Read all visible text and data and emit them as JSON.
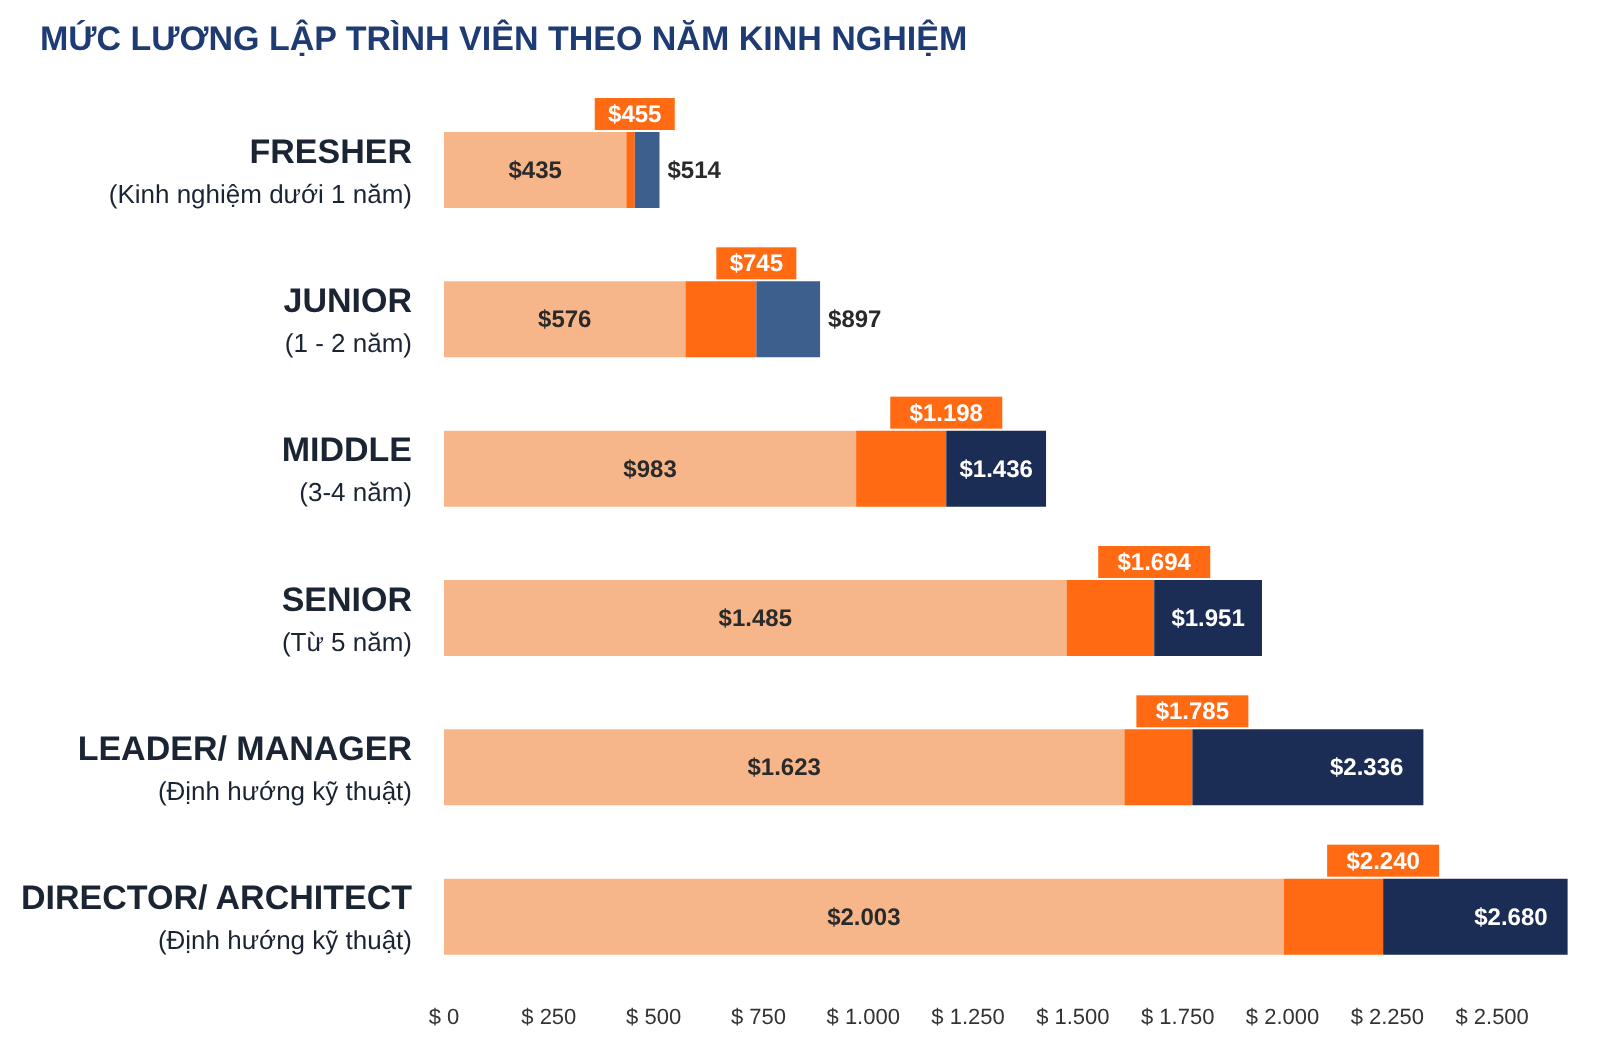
{
  "chart_data": {
    "type": "bar",
    "orientation": "horizontal",
    "stacked": true,
    "title": "MỨC LƯƠNG LẬP TRÌNH VIÊN THEO NĂM KINH NGHIỆM",
    "categories": [
      "FRESHER\n(Kinh nghiệm dưới 1 năm)",
      "JUNIOR\n(1 - 2 năm)",
      "MIDDLE\n(3-4 năm)",
      "SENIOR\n(Từ 5 năm)",
      "LEADER/ MANAGER\n(Định hướng kỹ thuật)",
      "DIRECTOR/ ARCHITECT\n(Định hướng kỹ thuật)"
    ],
    "series": [
      {
        "color": "#f6b68a",
        "values": [
          435,
          576,
          983,
          1485,
          1623,
          2003
        ],
        "value_labels": [
          "$435",
          "$576",
          "$983",
          "$1.485",
          "$1.623",
          "$2.003"
        ]
      },
      {
        "color": "#ff6a13",
        "values": [
          20,
          169,
          215,
          209,
          162,
          237
        ]
      },
      {
        "color": "#1b2d55",
        "colors": [
          "#3d5f8e",
          "#3d5f8e",
          "#1b2d55",
          "#1b2d55",
          "#1b2d55",
          "#1b2d55"
        ],
        "values": [
          59,
          152,
          238,
          257,
          551,
          440
        ]
      }
    ],
    "annotations": [
      {
        "text": "$455",
        "x": 455,
        "y": "FRESHER\n(Kinh nghiệm dưới 1 năm)"
      },
      {
        "text": "$514",
        "x": 514,
        "y": "FRESHER\n(Kinh nghiệm dưới 1 năm)"
      },
      {
        "text": "$745",
        "x": 745,
        "y": "JUNIOR\n(1 - 2 năm)"
      },
      {
        "text": "$897",
        "x": 897,
        "y": "JUNIOR\n(1 - 2 năm)"
      },
      {
        "text": "$1.198",
        "x": 1198,
        "y": "MIDDLE\n(3-4 năm)"
      },
      {
        "text": "$1.436",
        "x": 1436,
        "y": "MIDDLE\n(3-4 năm)"
      },
      {
        "text": "$1.694",
        "x": 1694,
        "y": "SENIOR\n(Từ 5 năm)"
      },
      {
        "text": "$1.951",
        "x": 1951,
        "y": "SENIOR\n(Từ 5 năm)"
      },
      {
        "text": "$1.785",
        "x": 1785,
        "y": "LEADER/ MANAGER\n(Định hướng kỹ thuật)"
      },
      {
        "text": "$2.336",
        "x": 2336,
        "y": "LEADER/ MANAGER\n(Định hướng kỹ thuật)"
      },
      {
        "text": "$2.240",
        "x": 2240,
        "y": "DIRECTOR/ ARCHITECT\n(Định hướng kỹ thuật)"
      },
      {
        "text": "$2.680",
        "x": 2680,
        "y": "DIRECTOR/ ARCHITECT\n(Định hướng kỹ thuật)"
      }
    ],
    "xlim": [
      0,
      2700
    ],
    "xticks": [
      {
        "value": 0,
        "label": "$ 0"
      },
      {
        "value": 250,
        "label": "$ 250"
      },
      {
        "value": 500,
        "label": "$ 500"
      },
      {
        "value": 750,
        "label": "$ 750"
      },
      {
        "value": 1000,
        "label": "$ 1.000"
      },
      {
        "value": 1250,
        "label": "$ 1.250"
      },
      {
        "value": 1500,
        "label": "$ 1.500"
      },
      {
        "value": 1750,
        "label": "$ 1.750"
      },
      {
        "value": 2000,
        "label": "$ 2.000"
      },
      {
        "value": 2250,
        "label": "$ 2.250"
      },
      {
        "value": 2500,
        "label": "$ 2.500"
      }
    ],
    "grid": false,
    "legend": false
  }
}
